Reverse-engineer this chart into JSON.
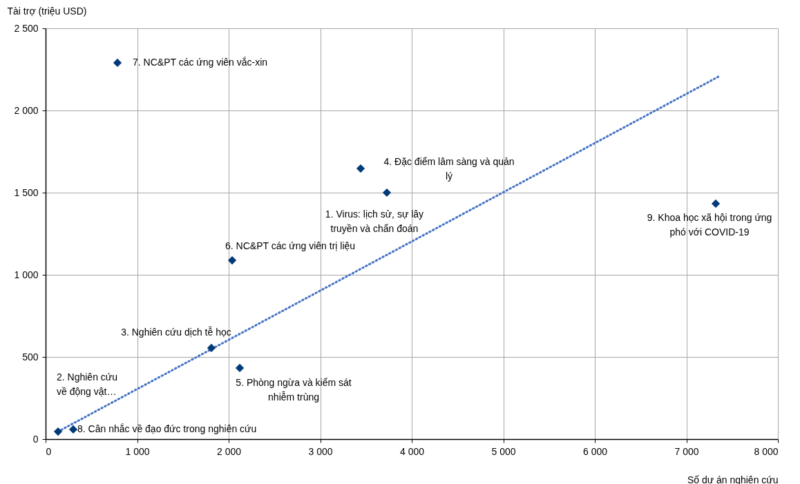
{
  "chart_data": {
    "type": "scatter",
    "xlabel": "Số dự án nghiên cứu",
    "ylabel": "Tài trợ (triệu USD)",
    "series": [
      {
        "type": "scatter",
        "marker": "diamond",
        "color": "#003a78",
        "x": [
          785,
          3442,
          3728,
          2038,
          1811,
          2121,
          136,
          302,
          7321
        ],
        "values": [
          2290,
          1647,
          1500,
          1088,
          555,
          433,
          46,
          59,
          1433
        ]
      },
      {
        "type": "line",
        "color": "#4472c4",
        "line_style": "dotted",
        "x": [
          136,
          7351
        ],
        "values": [
          46,
          2206
        ]
      }
    ],
    "grid": true,
    "xlim": [
      0,
      8000
    ],
    "xticks": [
      0,
      {
        "value": 1000,
        "label": "1 000"
      },
      {
        "value": 2000,
        "label": "2 000"
      },
      {
        "value": 3000,
        "label": "3 000"
      },
      {
        "value": 4000,
        "label": "4 000"
      },
      {
        "value": 5000,
        "label": "5 000"
      },
      {
        "value": 6000,
        "label": "6 000"
      },
      {
        "value": 7000,
        "label": "7 000"
      },
      {
        "value": 8000,
        "label": "8 000"
      }
    ],
    "ylim": [
      0,
      2500
    ],
    "yticks": [
      0,
      500,
      {
        "value": 1000,
        "label": "1 000"
      },
      {
        "value": 1500,
        "label": "1 500"
      },
      {
        "value": 2000,
        "label": "2 000"
      },
      {
        "value": 2500,
        "label": "2 500"
      }
    ],
    "annotations": [
      {
        "text": "7. NC&PT các ứng viên vắc-xin",
        "x": 785,
        "y": 2290
      },
      {
        "text": "4. Đặc điểm lâm sàng và quản lý",
        "x": 3442,
        "y": 1647
      },
      {
        "text": "1. Virus: lịch sử, sự lây truyền và chẩn đoán",
        "x": 3728,
        "y": 1500
      },
      {
        "text": "6. NC&PT các ứng viên trị liệu",
        "x": 2038,
        "y": 1088
      },
      {
        "text": "3. Nghiên cứu dịch tễ học",
        "x": 1811,
        "y": 555
      },
      {
        "text": "5. Phòng ngừa và kiểm sát nhiễm trùng",
        "x": 2121,
        "y": 433
      },
      "2. Nghiên cứu về động vật…",
      {
        "text": "8. Cân nhắc về đạo đức trong nghiên cứu",
        "x": 302,
        "y": 59
      },
      {
        "text": "9. Khoa học xã hội trong ứng phó với COVID-19",
        "x": 7321,
        "y": 1433
      }
    ]
  }
}
